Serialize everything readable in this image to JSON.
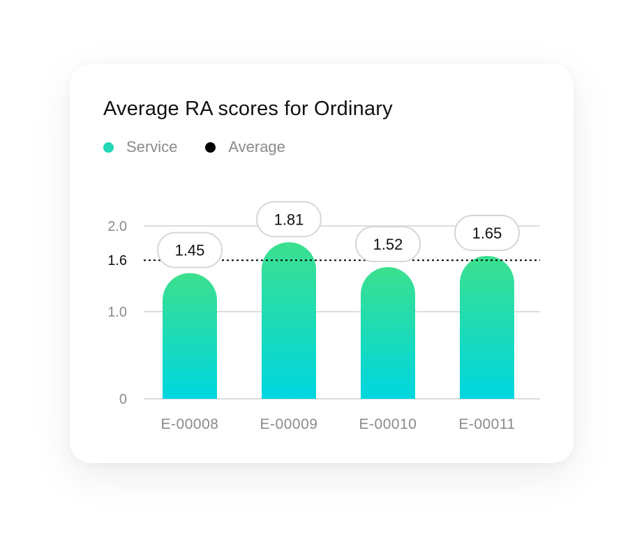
{
  "colors": {
    "service": "#22d8b8",
    "average": "#000000",
    "bar_top": "#3be08d",
    "bar_bottom": "#00d6e0",
    "grid": "#dddddd",
    "label_text": "#8a8a8a",
    "callout_border": "#d6d6d6"
  },
  "chart_data": {
    "type": "bar",
    "title": "Average RA scores for Ordinary",
    "categories": [
      "E-00008",
      "E-00009",
      "E-00010",
      "E-00011"
    ],
    "series": [
      {
        "name": "Service",
        "values": [
          1.45,
          1.81,
          1.52,
          1.65
        ]
      }
    ],
    "value_labels": [
      "1.45",
      "1.81",
      "1.52",
      "1.65"
    ],
    "average": {
      "name": "Average",
      "value": 1.6,
      "label": "1.6"
    },
    "yticks": [
      {
        "value": 0,
        "label": "0"
      },
      {
        "value": 1.0,
        "label": "1.0"
      },
      {
        "value": 2.0,
        "label": "2.0"
      }
    ],
    "legend": [
      {
        "name": "Service",
        "color": "#22d8b8"
      },
      {
        "name": "Average",
        "color": "#000000"
      }
    ],
    "legend_position": "top-left",
    "grid": true
  }
}
